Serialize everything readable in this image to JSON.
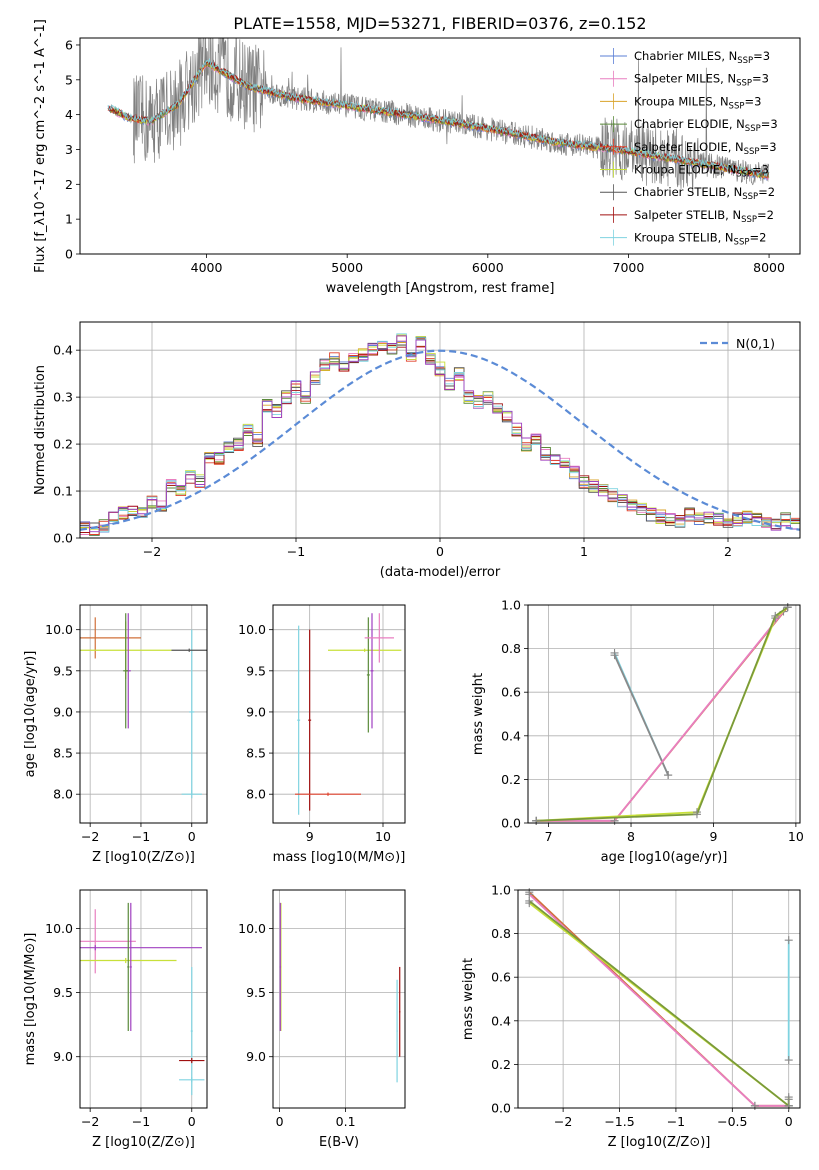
{
  "figure": {
    "title": "PLATE=1558, MJD=53271, FIBERID=0376, z=0.152"
  },
  "chart_data": [
    {
      "id": "spectrum",
      "type": "line",
      "xlabel": "wavelength [Angstrom, rest frame]",
      "ylabel": "Flux [f_λ10^-17 erg cm^-2 s^-1 A^-1]",
      "xlim": [
        3100,
        8220
      ],
      "ylim": [
        0,
        6.2
      ],
      "xticks": [
        4000,
        5000,
        6000,
        7000,
        8000
      ],
      "yticks": [
        0,
        1,
        2,
        3,
        4,
        5,
        6
      ],
      "grid": false,
      "legend_position": "right",
      "model_start": 3300,
      "model_end": 8000,
      "model_anchor_x": [
        3300,
        3450,
        3600,
        3800,
        4000,
        4300,
        4600,
        5000,
        5500,
        6000,
        6500,
        7000,
        7500,
        8000
      ],
      "model_anchor_y": [
        4.2,
        3.9,
        3.8,
        4.3,
        5.5,
        4.8,
        4.5,
        4.25,
        3.95,
        3.6,
        3.2,
        2.95,
        2.6,
        2.25
      ],
      "data_start": 3480,
      "data_end": 8000,
      "legend": [
        {
          "label": "Chabrier MILES, N",
          "sub": "SSP",
          "suffix": "=3",
          "color": "#5b7fd6"
        },
        {
          "label": "Salpeter MILES, N",
          "sub": "SSP",
          "suffix": "=3",
          "color": "#e87fc0"
        },
        {
          "label": "Kroupa MILES, N",
          "sub": "SSP",
          "suffix": "=3",
          "color": "#d9a32a"
        },
        {
          "label": "Chabrier ELODIE, N",
          "sub": "SSP",
          "suffix": "=3",
          "color": "#5a8a3a"
        },
        {
          "label": "Salpeter ELODIE, N",
          "sub": "SSP",
          "suffix": "=3",
          "color": "#e0402a"
        },
        {
          "label": "Kroupa ELODIE, N",
          "sub": "SSP",
          "suffix": "=3",
          "color": "#c8e03a"
        },
        {
          "label": "Chabrier STELIB, N",
          "sub": "SSP",
          "suffix": "=2",
          "color": "#555555"
        },
        {
          "label": "Salpeter STELIB, N",
          "sub": "SSP",
          "suffix": "=2",
          "color": "#a01010"
        },
        {
          "label": "Kroupa STELIB, N",
          "sub": "SSP",
          "suffix": "=2",
          "color": "#7fd3e0"
        }
      ]
    },
    {
      "id": "residual-histogram",
      "type": "bar",
      "xlabel": "(data-model)/error",
      "ylabel": "Normed distribution",
      "xlim": [
        -2.5,
        2.5
      ],
      "ylim": [
        0,
        0.46
      ],
      "xticks": [
        -2,
        -1,
        0,
        1,
        2
      ],
      "yticks": [
        0.0,
        0.1,
        0.2,
        0.3,
        0.4
      ],
      "grid": true,
      "legend_position": "top-right",
      "legend_label": "N(0,1)",
      "bin_width": 0.1,
      "bin_start": -2.5,
      "values": [
        0.02,
        0.02,
        0.025,
        0.04,
        0.055,
        0.06,
        0.055,
        0.075,
        0.065,
        0.11,
        0.1,
        0.13,
        0.12,
        0.175,
        0.17,
        0.19,
        0.2,
        0.23,
        0.21,
        0.28,
        0.27,
        0.3,
        0.32,
        0.3,
        0.34,
        0.37,
        0.38,
        0.37,
        0.38,
        0.39,
        0.4,
        0.41,
        0.4,
        0.42,
        0.39,
        0.42,
        0.38,
        0.36,
        0.33,
        0.35,
        0.3,
        0.29,
        0.3,
        0.28,
        0.26,
        0.23,
        0.2,
        0.21,
        0.18,
        0.17,
        0.16,
        0.14,
        0.12,
        0.11,
        0.1,
        0.09,
        0.08,
        0.07,
        0.06,
        0.05,
        0.045,
        0.04,
        0.035,
        0.05,
        0.04,
        0.045,
        0.04,
        0.035,
        0.04,
        0.045,
        0.04,
        0.035,
        0.03,
        0.04,
        0.03
      ],
      "curve_color": "#5b8bd6"
    },
    {
      "id": "age-vs-Z",
      "type": "scatter",
      "xlabel": "Z [log10(Z/Z⊙)]",
      "ylabel": "age [log10(age/yr)]",
      "xlim": [
        -2.2,
        0.3
      ],
      "ylim": [
        7.65,
        10.3
      ],
      "xticks": [
        -2,
        -1,
        0
      ],
      "yticks": [
        8.0,
        8.5,
        9.0,
        9.5,
        10.0
      ],
      "grid": true,
      "points": [
        {
          "x": -1.9,
          "y": 9.9,
          "xerr": 0.9,
          "yerr": 0.25,
          "color": "#d0703a"
        },
        {
          "x": -1.3,
          "y": 9.75,
          "xerr": 0.9,
          "yerr": 0.35,
          "color": "#c8e03a"
        },
        {
          "x": -1.25,
          "y": 9.5,
          "xerr": 0.05,
          "yerr": 0.7,
          "color": "#a040c0"
        },
        {
          "x": -1.3,
          "y": 9.5,
          "xerr": 0.05,
          "yerr": 0.7,
          "color": "#5a8a3a"
        },
        {
          "x": 0.0,
          "y": 9.0,
          "xerr": 0.05,
          "yerr": 1.0,
          "color": "#7fd3e0"
        },
        {
          "x": 0.0,
          "y": 8.0,
          "xerr": 0.2,
          "yerr": 0.05,
          "color": "#7fd3e0"
        },
        {
          "x": -0.05,
          "y": 9.75,
          "xerr": 0.35,
          "yerr": 0.02,
          "color": "#555555"
        }
      ]
    },
    {
      "id": "age-vs-mass",
      "type": "scatter",
      "xlabel": "mass [log10(M/M⊙)]",
      "ylabel": "",
      "xlim": [
        8.5,
        10.3
      ],
      "ylim": [
        7.65,
        10.3
      ],
      "xticks": [
        9,
        10
      ],
      "yticks": [
        8.0,
        8.5,
        9.0,
        9.5,
        10.0
      ],
      "grid": true,
      "points": [
        {
          "x": 8.85,
          "y": 8.9,
          "xerr": 0.02,
          "yerr": 1.15,
          "color": "#7fd3e0"
        },
        {
          "x": 9.0,
          "y": 8.9,
          "xerr": 0.02,
          "yerr": 1.1,
          "color": "#a01010"
        },
        {
          "x": 9.25,
          "y": 8.0,
          "xerr": 0.45,
          "yerr": 0.02,
          "color": "#e0402a"
        },
        {
          "x": 9.75,
          "y": 9.75,
          "xerr": 0.5,
          "yerr": 0.02,
          "color": "#c8e03a"
        },
        {
          "x": 9.8,
          "y": 9.45,
          "xerr": 0.02,
          "yerr": 0.7,
          "color": "#5a8a3a"
        },
        {
          "x": 9.85,
          "y": 9.5,
          "xerr": 0.02,
          "yerr": 0.7,
          "color": "#a040c0"
        },
        {
          "x": 9.95,
          "y": 9.9,
          "xerr": 0.2,
          "yerr": 0.3,
          "color": "#e87fc0"
        }
      ]
    },
    {
      "id": "mass-weight-vs-age",
      "type": "line",
      "xlabel": "age [log10(age/yr)]",
      "ylabel": "mass weight",
      "xlim": [
        6.75,
        10.05
      ],
      "ylim": [
        0,
        1.0
      ],
      "xticks": [
        7,
        8,
        9,
        10
      ],
      "yticks": [
        0.0,
        0.2,
        0.4,
        0.6,
        0.8,
        1.0
      ],
      "grid": true,
      "series": [
        {
          "x": [
            7.8,
            8.45
          ],
          "y": [
            0.78,
            0.22
          ],
          "color": "#7fd3e0"
        },
        {
          "x": [
            7.8,
            8.45
          ],
          "y": [
            0.77,
            0.22
          ],
          "color": "#8a8a8a"
        },
        {
          "x": [
            6.85,
            7.8,
            9.9
          ],
          "y": [
            0.01,
            0.01,
            0.99
          ],
          "color": "#d0703a"
        },
        {
          "x": [
            6.85,
            7.8,
            9.85
          ],
          "y": [
            0.01,
            0.01,
            0.97
          ],
          "color": "#e87fc0"
        },
        {
          "x": [
            6.85,
            8.8,
            9.75,
            9.9
          ],
          "y": [
            0.01,
            0.05,
            0.94,
            0.99
          ],
          "color": "#c8e03a"
        },
        {
          "x": [
            6.85,
            8.8,
            9.75,
            9.9
          ],
          "y": [
            0.01,
            0.04,
            0.95,
            0.99
          ],
          "color": "#7a9a3a"
        }
      ]
    },
    {
      "id": "mass-vs-Z",
      "type": "scatter",
      "xlabel": "Z [log10(Z/Z⊙)]",
      "ylabel": "mass [log10(M/M⊙)]",
      "xlim": [
        -2.2,
        0.3
      ],
      "ylim": [
        8.6,
        10.3
      ],
      "xticks": [
        -2,
        -1,
        0
      ],
      "yticks": [
        9.0,
        9.5,
        10.0
      ],
      "grid": true,
      "points": [
        {
          "x": -1.9,
          "y": 9.9,
          "xerr": 0.8,
          "yerr": 0.25,
          "color": "#e87fc0"
        },
        {
          "x": -1.9,
          "y": 9.85,
          "xerr": 2.1,
          "yerr": 0.02,
          "color": "#a040c0"
        },
        {
          "x": -1.3,
          "y": 9.75,
          "xerr": 1.0,
          "yerr": 0.02,
          "color": "#c8e03a"
        },
        {
          "x": -1.25,
          "y": 9.7,
          "xerr": 0.02,
          "yerr": 0.5,
          "color": "#5a8a3a"
        },
        {
          "x": -1.2,
          "y": 9.7,
          "xerr": 0.02,
          "yerr": 0.5,
          "color": "#a040c0"
        },
        {
          "x": 0.0,
          "y": 9.2,
          "xerr": 0.02,
          "yerr": 0.5,
          "color": "#7fd3e0"
        },
        {
          "x": 0.0,
          "y": 8.97,
          "xerr": 0.25,
          "yerr": 0.02,
          "color": "#a01010"
        },
        {
          "x": 0.0,
          "y": 8.82,
          "xerr": 0.25,
          "yerr": 0.02,
          "color": "#7fd3e0"
        }
      ]
    },
    {
      "id": "mass-vs-ebv",
      "type": "scatter",
      "xlabel": "E(B-V)",
      "ylabel": "",
      "xlim": [
        -0.01,
        0.19
      ],
      "ylim": [
        8.6,
        10.3
      ],
      "xticks": [
        0.0,
        0.1
      ],
      "yticks": [
        9.0,
        9.5,
        10.0
      ],
      "grid": true,
      "points": [
        {
          "x": 0.002,
          "y": 9.7,
          "xerr": 0.001,
          "yerr": 0.5,
          "color": "#c8e03a"
        },
        {
          "x": 0.001,
          "y": 9.7,
          "xerr": 0.001,
          "yerr": 0.5,
          "color": "#a040c0"
        },
        {
          "x": 0.178,
          "y": 9.2,
          "xerr": 0.001,
          "yerr": 0.4,
          "color": "#7fd3e0"
        },
        {
          "x": 0.182,
          "y": 9.35,
          "xerr": 0.001,
          "yerr": 0.35,
          "color": "#a01010"
        }
      ]
    },
    {
      "id": "mass-weight-vs-Z",
      "type": "line",
      "xlabel": "Z [log10(Z/Z⊙)]",
      "ylabel": "mass weight",
      "xlim": [
        -2.4,
        0.1
      ],
      "ylim": [
        0,
        1.0
      ],
      "xticks": [
        -2.0,
        -1.5,
        -1.0,
        -0.5,
        0.0
      ],
      "yticks": [
        0.0,
        0.2,
        0.4,
        0.6,
        0.8,
        1.0
      ],
      "grid": true,
      "series": [
        {
          "x": [
            0.0,
            0.0
          ],
          "y": [
            0.22,
            0.77
          ],
          "color": "#7fd3e0"
        },
        {
          "x": [
            -2.3,
            -0.3,
            0.0
          ],
          "y": [
            0.99,
            0.01,
            0.01
          ],
          "color": "#d0703a"
        },
        {
          "x": [
            -2.3,
            -0.3,
            0.0
          ],
          "y": [
            0.98,
            0.01,
            0.01
          ],
          "color": "#e87fc0"
        },
        {
          "x": [
            -2.3,
            0.0,
            0.0
          ],
          "y": [
            0.94,
            0.01,
            0.05
          ],
          "color": "#c8e03a"
        },
        {
          "x": [
            -2.3,
            0.0,
            0.0
          ],
          "y": [
            0.95,
            0.01,
            0.04
          ],
          "color": "#7a9a3a"
        }
      ]
    }
  ]
}
